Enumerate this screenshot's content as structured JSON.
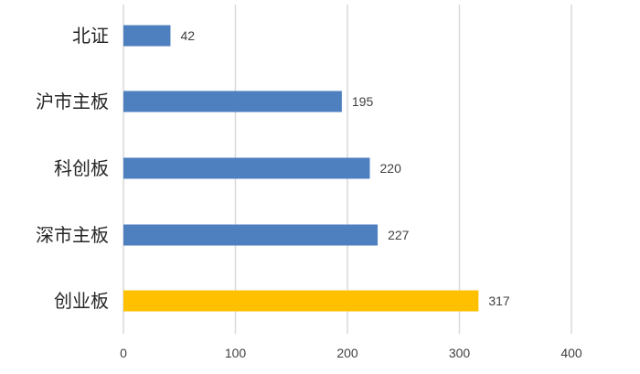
{
  "chart_data": {
    "type": "bar",
    "orientation": "horizontal",
    "categories": [
      "北证",
      "沪市主板",
      "科创板",
      "深市主板",
      "创业板"
    ],
    "values": [
      42,
      195,
      220,
      227,
      317
    ],
    "bar_colors": [
      "#4e7fbf",
      "#4e7fbf",
      "#4e7fbf",
      "#4e7fbf",
      "#ffc000"
    ],
    "xlim": [
      0,
      400
    ],
    "x_ticks": [
      0,
      100,
      200,
      300,
      400
    ],
    "grid": true,
    "legend": "none"
  }
}
